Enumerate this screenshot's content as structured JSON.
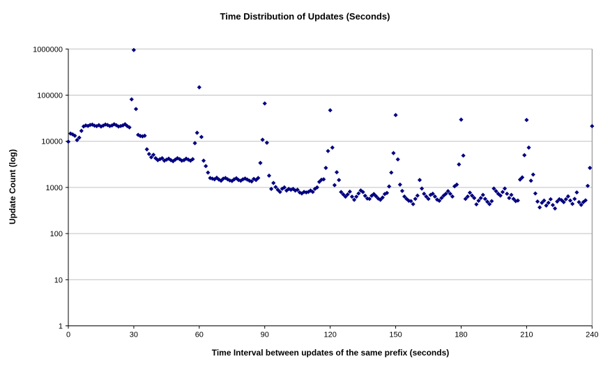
{
  "chart": {
    "title": "Time Distribution of Updates (Seconds)",
    "x_axis": {
      "label": "Time Interval between updates of the same prefix (seconds)",
      "ticks": [
        0,
        30,
        60,
        90,
        120,
        150,
        180,
        210,
        240
      ]
    },
    "y_axis": {
      "label": "Update Count (log)",
      "ticks": [
        1000000,
        100000,
        10000,
        1000,
        100,
        10,
        1
      ]
    },
    "colors": {
      "marker": "#000080",
      "grid": "#c0c0c0",
      "axis": "#000000",
      "border": "#808080",
      "background": "#ffffff"
    }
  },
  "chart_data": {
    "type": "scatter",
    "title": "Time Distribution of Updates (Seconds)",
    "xlabel": "Time Interval between updates of the same prefix (seconds)",
    "ylabel": "Update Count (log)",
    "x_range": [
      0,
      240
    ],
    "y_range": [
      1,
      1000000
    ],
    "y_scale": "log",
    "grid": "horizontal-decades",
    "legend": "none",
    "marker": "diamond",
    "points": [
      [
        0,
        9800
      ],
      [
        1,
        14700
      ],
      [
        2,
        14100
      ],
      [
        3,
        13200
      ],
      [
        4,
        10600
      ],
      [
        5,
        12000
      ],
      [
        6,
        16800
      ],
      [
        7,
        21000
      ],
      [
        8,
        22000
      ],
      [
        9,
        21500
      ],
      [
        10,
        22600
      ],
      [
        11,
        23000
      ],
      [
        12,
        21800
      ],
      [
        13,
        21300
      ],
      [
        14,
        22400
      ],
      [
        15,
        20900
      ],
      [
        16,
        21900
      ],
      [
        17,
        23100
      ],
      [
        18,
        22500
      ],
      [
        19,
        21400
      ],
      [
        20,
        22000
      ],
      [
        21,
        23400
      ],
      [
        22,
        22300
      ],
      [
        23,
        20900
      ],
      [
        24,
        21400
      ],
      [
        25,
        22100
      ],
      [
        26,
        23400
      ],
      [
        27,
        21400
      ],
      [
        28,
        20000
      ],
      [
        29,
        81000
      ],
      [
        30,
        950000
      ],
      [
        31,
        50000
      ],
      [
        32,
        13800
      ],
      [
        33,
        13000
      ],
      [
        34,
        12800
      ],
      [
        35,
        13200
      ],
      [
        36,
        6700
      ],
      [
        37,
        5300
      ],
      [
        38,
        4500
      ],
      [
        39,
        5100
      ],
      [
        40,
        4300
      ],
      [
        41,
        3900
      ],
      [
        42,
        4100
      ],
      [
        43,
        4300
      ],
      [
        44,
        3800
      ],
      [
        45,
        4000
      ],
      [
        46,
        4200
      ],
      [
        47,
        3900
      ],
      [
        48,
        3700
      ],
      [
        49,
        4000
      ],
      [
        50,
        4300
      ],
      [
        51,
        4100
      ],
      [
        52,
        3800
      ],
      [
        53,
        3900
      ],
      [
        54,
        4200
      ],
      [
        55,
        4000
      ],
      [
        56,
        3800
      ],
      [
        57,
        4100
      ],
      [
        58,
        9100
      ],
      [
        59,
        15300
      ],
      [
        60,
        148000
      ],
      [
        61,
        12400
      ],
      [
        62,
        3800
      ],
      [
        63,
        2900
      ],
      [
        64,
        2100
      ],
      [
        65,
        1600
      ],
      [
        66,
        1550
      ],
      [
        67,
        1500
      ],
      [
        68,
        1620
      ],
      [
        69,
        1480
      ],
      [
        70,
        1400
      ],
      [
        71,
        1550
      ],
      [
        72,
        1600
      ],
      [
        73,
        1500
      ],
      [
        74,
        1420
      ],
      [
        75,
        1380
      ],
      [
        76,
        1500
      ],
      [
        77,
        1580
      ],
      [
        78,
        1450
      ],
      [
        79,
        1400
      ],
      [
        80,
        1500
      ],
      [
        81,
        1560
      ],
      [
        82,
        1480
      ],
      [
        83,
        1400
      ],
      [
        84,
        1350
      ],
      [
        85,
        1530
      ],
      [
        86,
        1450
      ],
      [
        87,
        1600
      ],
      [
        88,
        3400
      ],
      [
        89,
        10800
      ],
      [
        90,
        66000
      ],
      [
        91,
        9300
      ],
      [
        92,
        1800
      ],
      [
        93,
        930
      ],
      [
        94,
        1250
      ],
      [
        95,
        1020
      ],
      [
        96,
        890
      ],
      [
        97,
        800
      ],
      [
        98,
        935
      ],
      [
        99,
        1000
      ],
      [
        100,
        855
      ],
      [
        101,
        930
      ],
      [
        102,
        890
      ],
      [
        103,
        930
      ],
      [
        104,
        855
      ],
      [
        105,
        890
      ],
      [
        106,
        780
      ],
      [
        107,
        740
      ],
      [
        108,
        800
      ],
      [
        109,
        780
      ],
      [
        110,
        800
      ],
      [
        111,
        855
      ],
      [
        112,
        800
      ],
      [
        113,
        930
      ],
      [
        114,
        1000
      ],
      [
        115,
        1320
      ],
      [
        116,
        1470
      ],
      [
        117,
        1500
      ],
      [
        118,
        2650
      ],
      [
        119,
        6150
      ],
      [
        120,
        47000
      ],
      [
        121,
        7300
      ],
      [
        122,
        1120
      ],
      [
        123,
        2130
      ],
      [
        124,
        1450
      ],
      [
        125,
        795
      ],
      [
        126,
        705
      ],
      [
        127,
        630
      ],
      [
        128,
        705
      ],
      [
        129,
        810
      ],
      [
        130,
        630
      ],
      [
        131,
        540
      ],
      [
        132,
        630
      ],
      [
        133,
        740
      ],
      [
        134,
        860
      ],
      [
        135,
        795
      ],
      [
        136,
        660
      ],
      [
        137,
        575
      ],
      [
        138,
        565
      ],
      [
        139,
        660
      ],
      [
        140,
        720
      ],
      [
        141,
        645
      ],
      [
        142,
        575
      ],
      [
        143,
        540
      ],
      [
        144,
        605
      ],
      [
        145,
        720
      ],
      [
        146,
        760
      ],
      [
        147,
        1050
      ],
      [
        148,
        2100
      ],
      [
        149,
        5550
      ],
      [
        150,
        37000
      ],
      [
        151,
        4050
      ],
      [
        152,
        1150
      ],
      [
        153,
        840
      ],
      [
        154,
        635
      ],
      [
        155,
        565
      ],
      [
        156,
        515
      ],
      [
        157,
        505
      ],
      [
        158,
        435
      ],
      [
        159,
        565
      ],
      [
        160,
        665
      ],
      [
        161,
        1450
      ],
      [
        162,
        945
      ],
      [
        163,
        730
      ],
      [
        164,
        635
      ],
      [
        165,
        565
      ],
      [
        166,
        690
      ],
      [
        167,
        730
      ],
      [
        168,
        635
      ],
      [
        169,
        545
      ],
      [
        170,
        515
      ],
      [
        171,
        590
      ],
      [
        172,
        665
      ],
      [
        173,
        730
      ],
      [
        174,
        830
      ],
      [
        175,
        730
      ],
      [
        176,
        635
      ],
      [
        177,
        1060
      ],
      [
        178,
        1150
      ],
      [
        179,
        3150
      ],
      [
        180,
        29500
      ],
      [
        181,
        4900
      ],
      [
        182,
        565
      ],
      [
        183,
        635
      ],
      [
        184,
        770
      ],
      [
        185,
        665
      ],
      [
        186,
        590
      ],
      [
        187,
        430
      ],
      [
        188,
        515
      ],
      [
        189,
        590
      ],
      [
        190,
        690
      ],
      [
        191,
        565
      ],
      [
        192,
        490
      ],
      [
        193,
        435
      ],
      [
        194,
        505
      ],
      [
        195,
        945
      ],
      [
        196,
        830
      ],
      [
        197,
        730
      ],
      [
        198,
        665
      ],
      [
        199,
        795
      ],
      [
        200,
        945
      ],
      [
        201,
        730
      ],
      [
        202,
        590
      ],
      [
        203,
        690
      ],
      [
        204,
        565
      ],
      [
        205,
        505
      ],
      [
        206,
        520
      ],
      [
        207,
        1480
      ],
      [
        208,
        1650
      ],
      [
        209,
        5000
      ],
      [
        210,
        29000
      ],
      [
        211,
        7300
      ],
      [
        212,
        1400
      ],
      [
        213,
        1900
      ],
      [
        214,
        740
      ],
      [
        215,
        495
      ],
      [
        216,
        370
      ],
      [
        217,
        465
      ],
      [
        218,
        520
      ],
      [
        219,
        405
      ],
      [
        220,
        465
      ],
      [
        221,
        555
      ],
      [
        222,
        415
      ],
      [
        223,
        350
      ],
      [
        224,
        495
      ],
      [
        225,
        555
      ],
      [
        226,
        530
      ],
      [
        227,
        480
      ],
      [
        228,
        555
      ],
      [
        229,
        640
      ],
      [
        230,
        520
      ],
      [
        231,
        440
      ],
      [
        232,
        565
      ],
      [
        233,
        780
      ],
      [
        234,
        480
      ],
      [
        235,
        420
      ],
      [
        236,
        480
      ],
      [
        237,
        525
      ],
      [
        238,
        1080
      ],
      [
        239,
        2650
      ],
      [
        240,
        21300
      ]
    ]
  }
}
